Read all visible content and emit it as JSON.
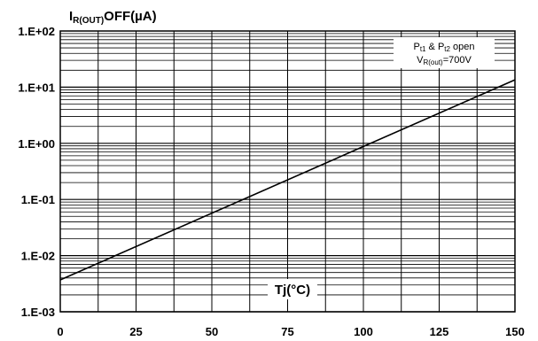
{
  "chart_data": {
    "type": "line",
    "ylabel": {
      "main": "I",
      "sub": "R(OUT)",
      "rest": "OFF(µA)"
    },
    "xlabel": "Tj(°C)",
    "xlim": [
      0,
      150
    ],
    "ylim": [
      0.001,
      100
    ],
    "yscale": "log",
    "grid": true,
    "x_ticks": [
      "0",
      "25",
      "50",
      "75",
      "100",
      "125",
      "150"
    ],
    "x_tick_values": [
      0,
      25,
      50,
      75,
      100,
      125,
      150
    ],
    "y_ticks": [
      "1.E+02",
      "1.E+01",
      "1.E+00",
      "1.E-01",
      "1.E-02",
      "1.E-03"
    ],
    "y_tick_values": [
      100,
      10,
      1,
      0.1,
      0.01,
      0.001
    ],
    "annotation": {
      "line1": {
        "a": "P",
        "a_sub": "t1",
        "mid": " & P",
        "b_sub": "t2",
        "end": " open"
      },
      "line2": {
        "a": "V",
        "a_sub": "R(out)",
        "end": "=700V"
      },
      "placement": "top-right"
    },
    "series": [
      {
        "x": [
          0,
          150
        ],
        "y": [
          0.0037,
          13.5
        ]
      }
    ]
  }
}
